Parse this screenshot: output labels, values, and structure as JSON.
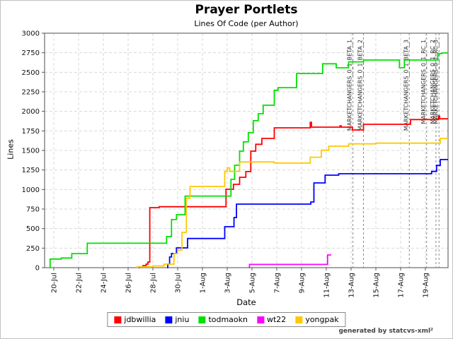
{
  "frame": {
    "title": "Prayer Portlets",
    "subtitle": "Lines Of Code (per Author)",
    "credit": "generated by statcvs-xml²"
  },
  "chart_data": {
    "type": "line",
    "title": "Prayer Portlets",
    "subtitle": "Lines Of Code (per Author)",
    "xlabel": "Date",
    "ylabel": "Lines",
    "ylim": [
      0,
      3000
    ],
    "y_ticks": [
      0,
      250,
      500,
      750,
      1000,
      1250,
      1500,
      1750,
      2000,
      2250,
      2500,
      2750,
      3000
    ],
    "x_ticks": [
      {
        "label": "20-Jul",
        "day": 0
      },
      {
        "label": "22-Jul",
        "day": 2
      },
      {
        "label": "24-Jul",
        "day": 4
      },
      {
        "label": "26-Jul",
        "day": 6
      },
      {
        "label": "28-Jul",
        "day": 8
      },
      {
        "label": "30-Jul",
        "day": 10
      },
      {
        "label": "1-Aug",
        "day": 12
      },
      {
        "label": "3-Aug",
        "day": 14
      },
      {
        "label": "5-Aug",
        "day": 16
      },
      {
        "label": "7-Aug",
        "day": 18
      },
      {
        "label": "9-Aug",
        "day": 20
      },
      {
        "label": "11-Aug",
        "day": 22
      },
      {
        "label": "13-Aug",
        "day": 24
      },
      {
        "label": "15-Aug",
        "day": 26
      },
      {
        "label": "17-Aug",
        "day": 28
      },
      {
        "label": "19-Aug",
        "day": 30
      }
    ],
    "x_range_days": [
      -0.74,
      31.83
    ],
    "grid": true,
    "legend_position": "bottom",
    "milestones": [
      {
        "label": "MARKETCHANGERS_0_1_BETA_1",
        "day": 24.15
      },
      {
        "label": "MARKETCHANGERS_0_1_BETA_2",
        "day": 25.0
      },
      {
        "label": "MARKETCHANGERS_0_1_BETA_3",
        "day": 28.7
      },
      {
        "label": "MARKETCHANGERS_0_1_RC_1",
        "day": 30.1
      },
      {
        "label": "MARKETCHANGERS_0_1_RC_2",
        "day": 30.85
      },
      {
        "label": "MARKETCHANGERS_0_1_RC_3",
        "day": 31.1
      }
    ],
    "series": [
      {
        "name": "jdbwillia",
        "color": "#ff0000",
        "points": [
          [
            6.85,
            0
          ],
          [
            6.9,
            8
          ],
          [
            7.2,
            27
          ],
          [
            7.45,
            45
          ],
          [
            7.6,
            72
          ],
          [
            7.75,
            768
          ],
          [
            8.5,
            780
          ],
          [
            13.9,
            1003
          ],
          [
            14.5,
            1066
          ],
          [
            15.0,
            1157
          ],
          [
            15.5,
            1230
          ],
          [
            15.9,
            1491
          ],
          [
            16.3,
            1579
          ],
          [
            16.8,
            1654
          ],
          [
            17.8,
            1789
          ],
          [
            20.7,
            1860
          ],
          [
            20.8,
            1798
          ],
          [
            23.1,
            1815
          ],
          [
            23.2,
            1798
          ],
          [
            24.1,
            1762
          ],
          [
            25.0,
            1834
          ],
          [
            28.8,
            1895
          ],
          [
            31.05,
            1940
          ],
          [
            31.15,
            1905
          ],
          [
            31.83,
            1905
          ]
        ]
      },
      {
        "name": "jniu",
        "color": "#0000ff",
        "points": [
          [
            9.15,
            0
          ],
          [
            9.2,
            45
          ],
          [
            9.35,
            136
          ],
          [
            9.5,
            181
          ],
          [
            9.9,
            253
          ],
          [
            10.8,
            373
          ],
          [
            13.8,
            524
          ],
          [
            14.55,
            642
          ],
          [
            14.75,
            813
          ],
          [
            20.75,
            840
          ],
          [
            21.0,
            1084
          ],
          [
            21.9,
            1184
          ],
          [
            23.0,
            1202
          ],
          [
            30.5,
            1232
          ],
          [
            30.9,
            1308
          ],
          [
            31.2,
            1383
          ],
          [
            31.83,
            1383
          ]
        ]
      },
      {
        "name": "todmaokn",
        "color": "#00e000",
        "points": [
          [
            -0.35,
            0
          ],
          [
            -0.3,
            110
          ],
          [
            0.6,
            124
          ],
          [
            1.45,
            180
          ],
          [
            2.7,
            313
          ],
          [
            9.1,
            398
          ],
          [
            9.5,
            615
          ],
          [
            9.9,
            678
          ],
          [
            10.6,
            916
          ],
          [
            14.3,
            1130
          ],
          [
            14.6,
            1310
          ],
          [
            15.0,
            1491
          ],
          [
            15.3,
            1609
          ],
          [
            15.7,
            1727
          ],
          [
            16.1,
            1880
          ],
          [
            16.5,
            1970
          ],
          [
            16.9,
            2078
          ],
          [
            17.8,
            2270
          ],
          [
            18.1,
            2303
          ],
          [
            19.6,
            2484
          ],
          [
            21.7,
            2609
          ],
          [
            22.8,
            2557
          ],
          [
            23.8,
            2633
          ],
          [
            25.0,
            2657
          ],
          [
            27.9,
            2558
          ],
          [
            28.3,
            2657
          ],
          [
            31.0,
            2738
          ],
          [
            31.3,
            2747
          ],
          [
            31.83,
            2747
          ]
        ]
      },
      {
        "name": "wt22",
        "color": "#ff00ff",
        "points": [
          [
            15.75,
            0
          ],
          [
            15.8,
            42
          ],
          [
            22.1,
            163
          ],
          [
            22.4,
            163
          ]
        ]
      },
      {
        "name": "yongpak",
        "color": "#ffc800",
        "points": [
          [
            6.7,
            0
          ],
          [
            6.75,
            11
          ],
          [
            8.0,
            23
          ],
          [
            8.9,
            45
          ],
          [
            9.7,
            181
          ],
          [
            10.0,
            226
          ],
          [
            10.35,
            452
          ],
          [
            10.7,
            886
          ],
          [
            11.0,
            1039
          ],
          [
            13.8,
            1232
          ],
          [
            14.0,
            1277
          ],
          [
            14.2,
            1232
          ],
          [
            15.0,
            1353
          ],
          [
            17.8,
            1338
          ],
          [
            20.7,
            1413
          ],
          [
            21.6,
            1503
          ],
          [
            22.2,
            1554
          ],
          [
            23.8,
            1584
          ],
          [
            26.0,
            1593
          ],
          [
            31.2,
            1654
          ],
          [
            31.83,
            1654
          ]
        ]
      }
    ]
  },
  "colors": {
    "grid": "#d8d8d8",
    "frame": "#808080",
    "tick": "#555555",
    "tick_text": "#111111",
    "milestone_line": "#888888",
    "milestone_text": "#333333"
  }
}
